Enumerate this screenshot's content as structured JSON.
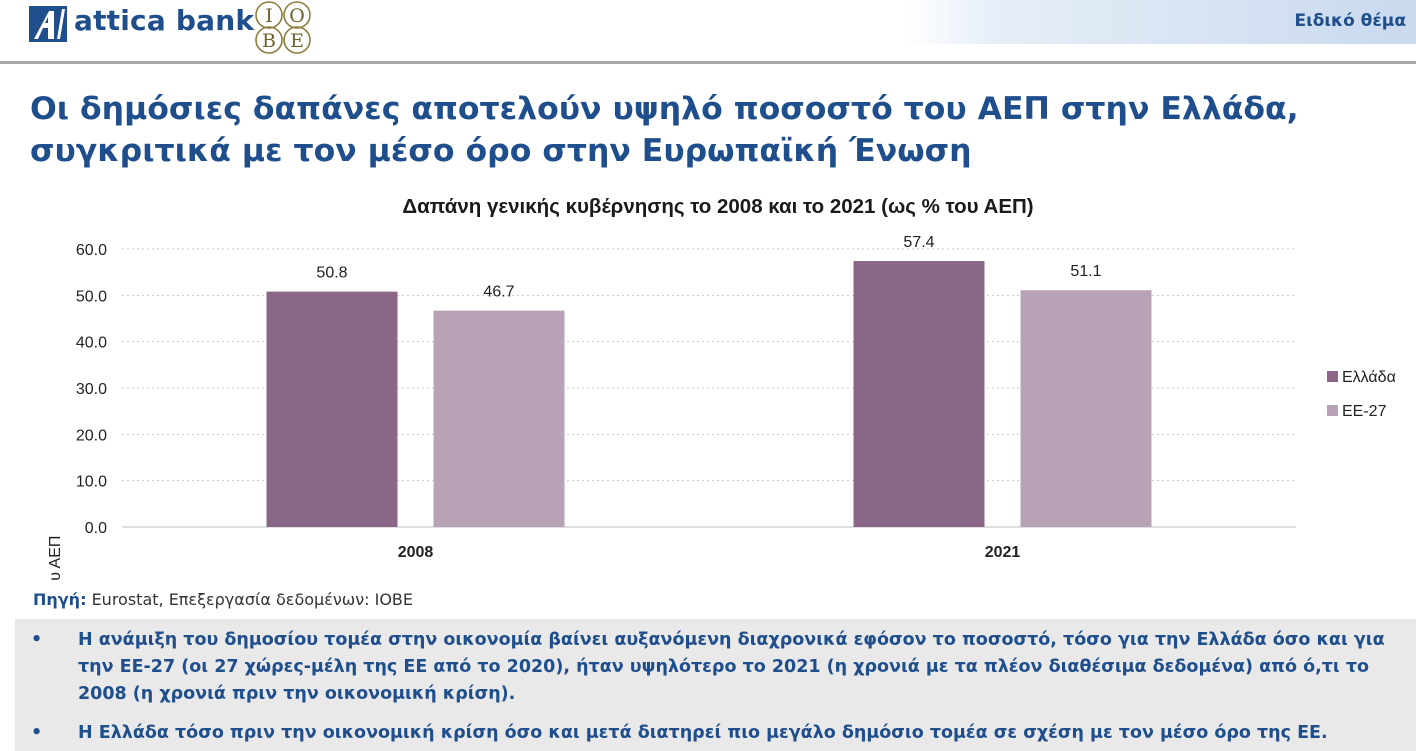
{
  "header": {
    "bank_name": "attica bank",
    "partner_logo_text": "IOBE",
    "section_label": "Ειδικό θέμα"
  },
  "page_title": "Οι δημόσιες δαπάνες αποτελούν υψηλό ποσοστό του ΑΕΠ στην Ελλάδα, συγκριτικά με τον μέσο όρο στην Ευρωπαϊκή Ένωση",
  "colors": {
    "brand_blue": "#1f4e8c",
    "greece": "#8a6786",
    "eu27": "#b8a2b6",
    "notes_bg": "#e9e9e9"
  },
  "chart_data": {
    "type": "bar",
    "title": "Δαπάνη γενικής κυβέρνησης το 2008 και το 2021 (ως % του ΑΕΠ)",
    "xlabel": "",
    "ylabel": "% του ΑΕΠ",
    "categories": [
      "2008",
      "2021"
    ],
    "series": [
      {
        "name": "Ελλάδα",
        "values": [
          50.8,
          57.4
        ]
      },
      {
        "name": "ΕΕ-27",
        "values": [
          46.7,
          51.1
        ]
      }
    ],
    "ylim": [
      0,
      60
    ],
    "yticks": [
      "0.0",
      "10.0",
      "20.0",
      "30.0",
      "40.0",
      "50.0",
      "60.0"
    ],
    "data_labels": [
      [
        "50.8",
        "57.4"
      ],
      [
        "46.7",
        "51.1"
      ]
    ],
    "grid": true,
    "legend": "right"
  },
  "source": {
    "prefix": "Πηγή:",
    "text": "Eurostat, Επεξεργασία δεδομένων: ΙΟΒΕ"
  },
  "notes": [
    {
      "bullet": "•",
      "text": "Η ανάμιξη του δημοσίου τομέα στην οικονομία βαίνει αυξανόμενη διαχρονικά εφόσον το ποσοστό, τόσο για την Ελλάδα όσο και για την ΕΕ-27 (οι 27 χώρες-μέλη της ΕΕ από το 2020), ήταν υψηλότερο το 2021 (η χρονιά με τα πλέον διαθέσιμα δεδομένα) από ό,τι το 2008 (η χρονιά πριν την οικονομική κρίση)."
    },
    {
      "bullet": "•",
      "text": "Η Ελλάδα τόσο πριν την οικονομική κρίση όσο και μετά διατηρεί πιο μεγάλο δημόσιο τομέα σε σχέση με τον μέσο όρο της ΕΕ."
    }
  ]
}
